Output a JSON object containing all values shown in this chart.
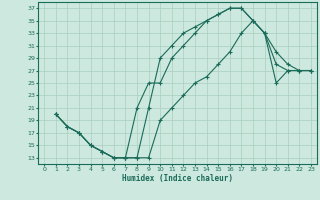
{
  "xlabel": "Humidex (Indice chaleur)",
  "ylabel": "",
  "bg_color": "#cce8df",
  "grid_color": "#aacfbf",
  "line_color": "#1a6b58",
  "xlim": [
    -0.5,
    23.5
  ],
  "ylim": [
    12,
    38
  ],
  "xticks": [
    0,
    1,
    2,
    3,
    4,
    5,
    6,
    7,
    8,
    9,
    10,
    11,
    12,
    13,
    14,
    15,
    16,
    17,
    18,
    19,
    20,
    21,
    22,
    23
  ],
  "yticks": [
    13,
    15,
    17,
    19,
    21,
    23,
    25,
    27,
    29,
    31,
    33,
    35,
    37
  ],
  "line1_x": [
    1,
    2,
    3,
    4,
    5,
    6,
    7,
    8,
    9,
    10,
    11,
    12,
    13,
    14,
    15,
    16,
    17,
    18,
    19,
    20,
    21,
    22,
    23
  ],
  "line1_y": [
    20,
    18,
    17,
    15,
    14,
    13,
    13,
    13,
    21,
    29,
    31,
    33,
    34,
    35,
    36,
    37,
    37,
    35,
    33,
    30,
    28,
    27,
    27
  ],
  "line2_x": [
    1,
    2,
    3,
    4,
    5,
    6,
    7,
    8,
    9,
    10,
    11,
    12,
    13,
    14,
    15,
    16,
    17,
    18,
    19,
    20,
    21,
    22,
    23
  ],
  "line2_y": [
    20,
    18,
    17,
    15,
    14,
    13,
    13,
    21,
    25,
    25,
    29,
    31,
    33,
    35,
    36,
    37,
    37,
    35,
    33,
    28,
    27,
    27,
    27
  ],
  "line3_x": [
    1,
    2,
    3,
    4,
    5,
    6,
    7,
    8,
    9,
    10,
    11,
    12,
    13,
    14,
    15,
    16,
    17,
    18,
    19,
    20,
    21,
    22,
    23
  ],
  "line3_y": [
    20,
    18,
    17,
    15,
    14,
    13,
    13,
    13,
    13,
    19,
    21,
    23,
    25,
    26,
    28,
    30,
    33,
    35,
    33,
    25,
    27,
    27,
    27
  ]
}
